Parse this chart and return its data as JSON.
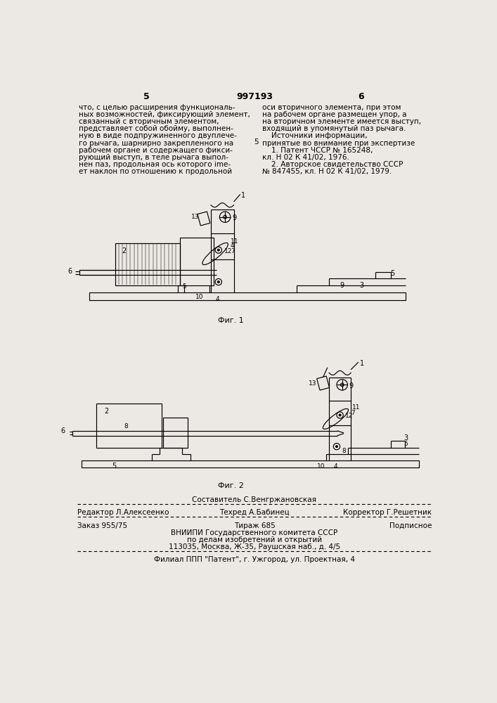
{
  "bg_color": "#ece9e4",
  "page_num_left": "5",
  "page_num_center": "997193",
  "page_num_right": "6",
  "col_left_text": [
    "что, с целью расширения функциональ-",
    "ных возможностей, фиксирующий элемент,",
    "связанный с вторичным элементом,",
    "представляет собой обойму, выполнен-",
    "ную в виде подпружиненного двуплече-",
    "го рычага, шарнирно закрепленного на",
    "рабочем органе и содержащего фикси-",
    "рующий выступ, в теле рычага выпол-",
    "нен паз, продольная ось которого ime-",
    "ет наклон по отношению к продольной"
  ],
  "col_right_text": [
    "оси вторичного элемента, при этом",
    "на рабочем органе размещен упор, а",
    "на вторичном элементе имеется выступ,",
    "входящий в упомянутый паз рычага.",
    "    Источники информации,",
    "принятые во внимание при экспертизе",
    "    1. Патент ЧССР № 165248,",
    "кл. Н 02 К 41/02, 1976.",
    "    2. Авторское свидетельство СССР",
    "№ 847455, кл. Н 02 К 41/02, 1979."
  ],
  "fig1_caption": "Фиг. 1",
  "fig2_caption": "Фиг. 2",
  "footer_composer": "Составитель С.Венгржановская",
  "footer_line1_left": "Редактор Л.Алексеенко",
  "footer_line1_center": "Техред А.Бабинец",
  "footer_line1_right": "Корректор Г.Решетник",
  "footer_line2_left": "Заказ 955/75",
  "footer_line2_center": "Тираж 685",
  "footer_line2_right": "Подписное",
  "footer_line3": "ВНИИПИ Государственного комитета СССР",
  "footer_line4": "по делам изобретений и открытий",
  "footer_line5": "113035, Москва, Ж-35, Раушская наб., д. 4/5",
  "footer_line6": "Филиал ППП \"Патент\", г. Ужгород, ул. Проектная, 4"
}
